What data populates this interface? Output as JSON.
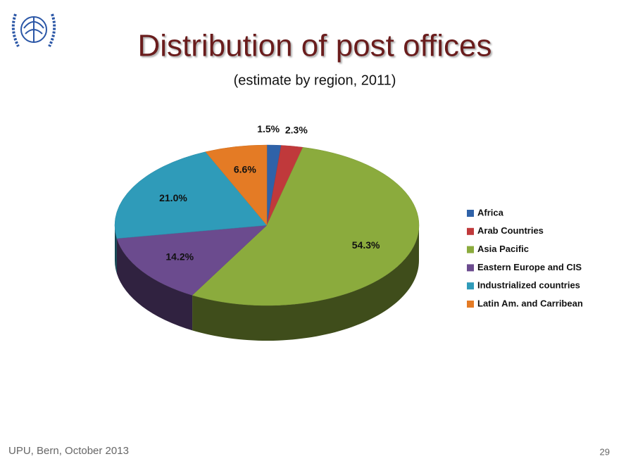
{
  "chart_data": {
    "type": "pie3d",
    "title": "Distribution of post offices",
    "subtitle": "(estimate by region, 2011)",
    "categories": [
      "Africa",
      "Arab Countries",
      "Asia Pacific",
      "Eastern Europe and CIS",
      "Industrialized countries",
      "Latin Am. and Carribean"
    ],
    "values": [
      1.5,
      2.3,
      54.3,
      14.2,
      21.0,
      6.6
    ],
    "value_labels": [
      "1.5%",
      "2.3%",
      "54.3%",
      "14.2%",
      "21.0%",
      "6.6%"
    ],
    "colors": [
      "#2f62a8",
      "#c0393b",
      "#8bab3d",
      "#6b4b8e",
      "#2f9bb9",
      "#e47b25"
    ],
    "legend": "right"
  },
  "footer": {
    "left": "UPU, Bern, October 2013",
    "page": "29"
  }
}
